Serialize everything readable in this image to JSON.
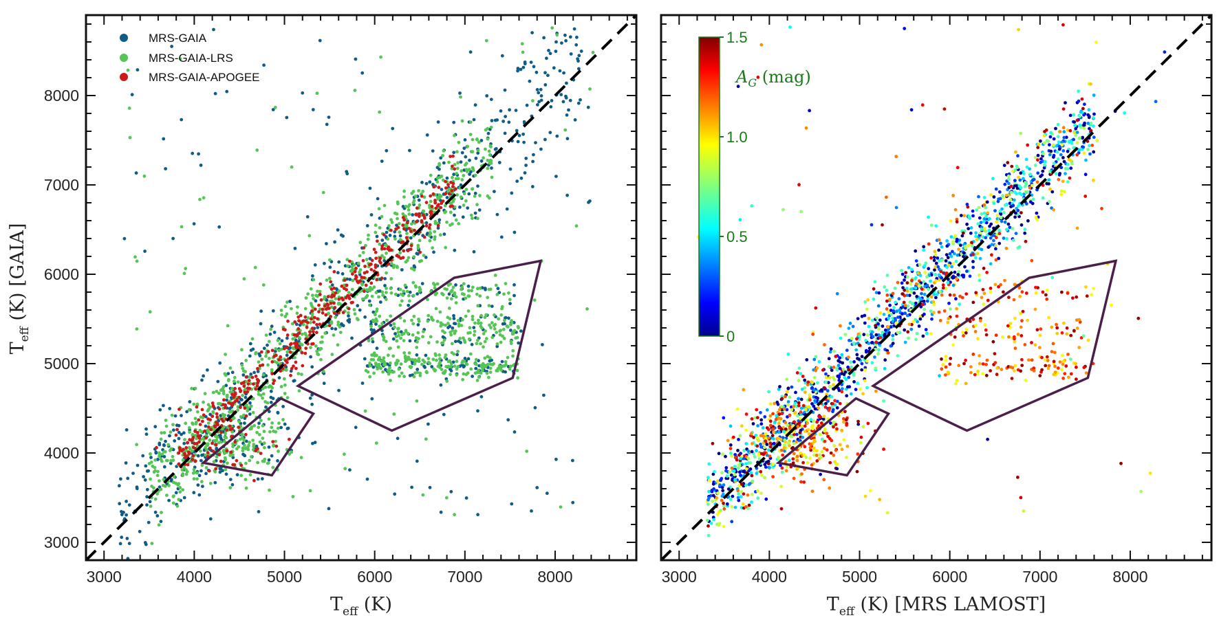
{
  "chart_data": [
    {
      "type": "scatter",
      "panel": "left",
      "title": "",
      "xlabel": "T_eff (K)",
      "ylabel": "T_eff (K) [GAIA]",
      "xlim": [
        2800,
        8900
      ],
      "ylim": [
        2800,
        8900
      ],
      "xticks": [
        3000,
        4000,
        5000,
        6000,
        7000,
        8000
      ],
      "yticks": [
        3000,
        4000,
        5000,
        6000,
        7000,
        8000
      ],
      "xtick_labels": [
        "3000",
        "4000",
        "5000",
        "6000",
        "7000",
        "8000"
      ],
      "ytick_labels": [
        "3000",
        "4000",
        "5000",
        "6000",
        "7000",
        "8000"
      ],
      "one_to_one_line": true,
      "legend_position": "top-left",
      "series": [
        {
          "name": "MRS-GAIA",
          "color": "#0f5c86",
          "count_estimate": 1000
        },
        {
          "name": "MRS-GAIA-LRS",
          "color": "#55c655",
          "count_estimate": 1400
        },
        {
          "name": "MRS-GAIA-APOGEE",
          "color": "#cc1a1a",
          "count_estimate": 420
        }
      ],
      "polygons": [
        {
          "name": "small-polygon",
          "vertices": [
            [
              4100,
              3890
            ],
            [
              4860,
              3750
            ],
            [
              5320,
              4440
            ],
            [
              4960,
              4610
            ]
          ]
        },
        {
          "name": "large-polygon",
          "vertices": [
            [
              5150,
              4750
            ],
            [
              6880,
              5960
            ],
            [
              7840,
              6150
            ],
            [
              7530,
              4840
            ],
            [
              6190,
              4250
            ]
          ]
        }
      ]
    },
    {
      "type": "scatter",
      "panel": "right",
      "title": "",
      "xlabel": "T_eff (K) [MRS LAMOST]",
      "ylabel": "",
      "xlim": [
        2800,
        8900
      ],
      "ylim": [
        2800,
        8900
      ],
      "xticks": [
        3000,
        4000,
        5000,
        6000,
        7000,
        8000
      ],
      "xtick_labels": [
        "3000",
        "4000",
        "5000",
        "6000",
        "7000",
        "8000"
      ],
      "one_to_one_line": true,
      "color_by": "A_G (mag)",
      "colorbar": {
        "label": "A_G (mag)",
        "min": 0,
        "max": 1.5,
        "ticks": [
          0,
          0.5,
          1.0,
          1.5
        ],
        "tick_labels": [
          "0",
          "0.5",
          "1.0",
          "1.5"
        ],
        "colormap": "jet",
        "label_color": "#1a7a1a"
      },
      "polygons": [
        {
          "name": "small-polygon",
          "vertices": [
            [
              4100,
              3890
            ],
            [
              4860,
              3750
            ],
            [
              5320,
              4440
            ],
            [
              4960,
              4610
            ]
          ]
        },
        {
          "name": "large-polygon",
          "vertices": [
            [
              5150,
              4750
            ],
            [
              6880,
              5960
            ],
            [
              7840,
              6150
            ],
            [
              7530,
              4840
            ],
            [
              6190,
              4250
            ]
          ]
        }
      ],
      "count_estimate": 2600
    }
  ],
  "labels": {
    "left_xlabel_main": "T",
    "left_xlabel_sub": "eff",
    "left_xlabel_rest": " (K)",
    "ylabel_main": "T",
    "ylabel_sub": "eff",
    "ylabel_rest": " (K) [GAIA]",
    "right_xlabel_main": "T",
    "right_xlabel_sub": "eff",
    "right_xlabel_rest": " (K) [MRS LAMOST]",
    "cb_label_main": "A",
    "cb_label_sub": "G",
    "cb_label_rest": " (mag)"
  },
  "colors": {
    "axis": "#111111",
    "polygon": "#4a1f4a",
    "diag": "#000000"
  }
}
